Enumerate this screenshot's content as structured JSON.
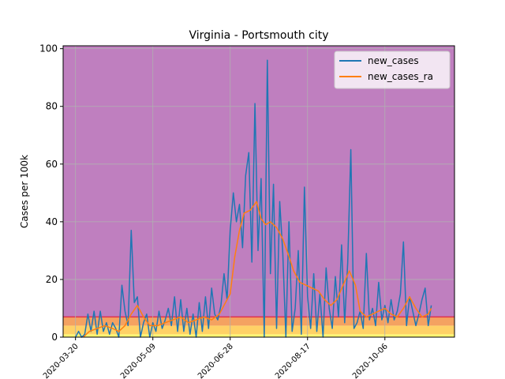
{
  "chart_data": {
    "type": "line",
    "title": "Virginia - Portsmouth city",
    "xlabel": "",
    "ylabel": "Cases per 100k",
    "x_start": "2020-03-12",
    "x_end": "2020-11-20",
    "xlim": [
      "2020-03-12",
      "2020-11-20"
    ],
    "ylim": [
      0,
      101
    ],
    "x_ticks": [
      "2020-03-20",
      "2020-05-09",
      "2020-06-28",
      "2020-08-17",
      "2020-10-06"
    ],
    "y_ticks": [
      0,
      20,
      40,
      60,
      80,
      100
    ],
    "grid": true,
    "legend_position": "top-right",
    "background_bands": [
      {
        "from": 0,
        "to": 1,
        "color": "#fff570"
      },
      {
        "from": 1,
        "to": 4,
        "color": "#ffd166"
      },
      {
        "from": 4,
        "to": 7,
        "color": "#f4a261"
      },
      {
        "from": 7,
        "to": 101,
        "color": "#bf7fbf"
      }
    ],
    "threshold_line": {
      "value": 7,
      "color": "#e0324a"
    },
    "series": [
      {
        "name": "new_cases",
        "color": "#1f77b4",
        "points": [
          [
            "2020-03-20",
            0
          ],
          [
            "2020-03-22",
            2
          ],
          [
            "2020-03-24",
            0
          ],
          [
            "2020-03-26",
            1
          ],
          [
            "2020-03-28",
            8
          ],
          [
            "2020-03-30",
            2
          ],
          [
            "2020-04-01",
            9
          ],
          [
            "2020-04-03",
            1
          ],
          [
            "2020-04-05",
            9
          ],
          [
            "2020-04-07",
            2
          ],
          [
            "2020-04-09",
            5
          ],
          [
            "2020-04-11",
            1
          ],
          [
            "2020-04-13",
            5
          ],
          [
            "2020-04-15",
            3
          ],
          [
            "2020-04-17",
            0
          ],
          [
            "2020-04-19",
            18
          ],
          [
            "2020-04-21",
            9
          ],
          [
            "2020-04-23",
            4
          ],
          [
            "2020-04-25",
            37
          ],
          [
            "2020-04-27",
            12
          ],
          [
            "2020-04-29",
            14
          ],
          [
            "2020-05-01",
            0
          ],
          [
            "2020-05-03",
            5
          ],
          [
            "2020-05-05",
            8
          ],
          [
            "2020-05-07",
            0
          ],
          [
            "2020-05-09",
            5
          ],
          [
            "2020-05-11",
            2
          ],
          [
            "2020-05-13",
            9
          ],
          [
            "2020-05-15",
            3
          ],
          [
            "2020-05-17",
            6
          ],
          [
            "2020-05-19",
            10
          ],
          [
            "2020-05-21",
            4
          ],
          [
            "2020-05-23",
            14
          ],
          [
            "2020-05-25",
            2
          ],
          [
            "2020-05-27",
            13
          ],
          [
            "2020-05-29",
            2
          ],
          [
            "2020-05-31",
            10
          ],
          [
            "2020-06-02",
            1
          ],
          [
            "2020-06-04",
            8
          ],
          [
            "2020-06-06",
            0
          ],
          [
            "2020-06-08",
            12
          ],
          [
            "2020-06-10",
            2
          ],
          [
            "2020-06-12",
            14
          ],
          [
            "2020-06-14",
            3
          ],
          [
            "2020-06-16",
            17
          ],
          [
            "2020-06-18",
            8
          ],
          [
            "2020-06-20",
            6
          ],
          [
            "2020-06-22",
            11
          ],
          [
            "2020-06-24",
            22
          ],
          [
            "2020-06-26",
            13
          ],
          [
            "2020-06-28",
            37
          ],
          [
            "2020-06-30",
            50
          ],
          [
            "2020-07-02",
            40
          ],
          [
            "2020-07-04",
            46
          ],
          [
            "2020-07-06",
            31
          ],
          [
            "2020-07-08",
            56
          ],
          [
            "2020-07-10",
            64
          ],
          [
            "2020-07-12",
            26
          ],
          [
            "2020-07-14",
            81
          ],
          [
            "2020-07-16",
            30
          ],
          [
            "2020-07-18",
            55
          ],
          [
            "2020-07-20",
            0
          ],
          [
            "2020-07-22",
            96
          ],
          [
            "2020-07-24",
            22
          ],
          [
            "2020-07-26",
            53
          ],
          [
            "2020-07-28",
            3
          ],
          [
            "2020-07-30",
            47
          ],
          [
            "2020-08-01",
            29
          ],
          [
            "2020-08-03",
            0
          ],
          [
            "2020-08-05",
            40
          ],
          [
            "2020-08-07",
            2
          ],
          [
            "2020-08-09",
            10
          ],
          [
            "2020-08-11",
            30
          ],
          [
            "2020-08-13",
            1
          ],
          [
            "2020-08-15",
            52
          ],
          [
            "2020-08-17",
            14
          ],
          [
            "2020-08-19",
            3
          ],
          [
            "2020-08-21",
            22
          ],
          [
            "2020-08-23",
            2
          ],
          [
            "2020-08-25",
            15
          ],
          [
            "2020-08-27",
            0
          ],
          [
            "2020-08-29",
            24
          ],
          [
            "2020-08-31",
            10
          ],
          [
            "2020-09-02",
            3
          ],
          [
            "2020-09-04",
            21
          ],
          [
            "2020-09-06",
            7
          ],
          [
            "2020-09-08",
            32
          ],
          [
            "2020-09-10",
            5
          ],
          [
            "2020-09-12",
            26
          ],
          [
            "2020-09-14",
            65
          ],
          [
            "2020-09-16",
            3
          ],
          [
            "2020-09-18",
            5
          ],
          [
            "2020-09-20",
            9
          ],
          [
            "2020-09-22",
            3
          ],
          [
            "2020-09-24",
            29
          ],
          [
            "2020-09-26",
            6
          ],
          [
            "2020-09-28",
            10
          ],
          [
            "2020-09-30",
            4
          ],
          [
            "2020-10-02",
            19
          ],
          [
            "2020-10-04",
            6
          ],
          [
            "2020-10-06",
            11
          ],
          [
            "2020-10-08",
            5
          ],
          [
            "2020-10-10",
            13
          ],
          [
            "2020-10-12",
            6
          ],
          [
            "2020-10-14",
            9
          ],
          [
            "2020-10-16",
            15
          ],
          [
            "2020-10-18",
            33
          ],
          [
            "2020-10-20",
            4
          ],
          [
            "2020-10-22",
            14
          ],
          [
            "2020-10-24",
            9
          ],
          [
            "2020-10-26",
            4
          ],
          [
            "2020-10-28",
            8
          ],
          [
            "2020-10-30",
            13
          ],
          [
            "2020-11-01",
            17
          ],
          [
            "2020-11-03",
            4
          ],
          [
            "2020-11-05",
            11
          ]
        ]
      },
      {
        "name": "new_cases_ra",
        "color": "#ff7f0e",
        "points": [
          [
            "2020-03-25",
            0
          ],
          [
            "2020-03-29",
            2
          ],
          [
            "2020-04-03",
            3
          ],
          [
            "2020-04-08",
            4
          ],
          [
            "2020-04-13",
            3
          ],
          [
            "2020-04-17",
            2
          ],
          [
            "2020-04-21",
            4
          ],
          [
            "2020-04-25",
            8
          ],
          [
            "2020-04-29",
            11
          ],
          [
            "2020-05-03",
            7
          ],
          [
            "2020-05-07",
            4
          ],
          [
            "2020-05-12",
            4
          ],
          [
            "2020-05-17",
            5
          ],
          [
            "2020-05-22",
            6
          ],
          [
            "2020-05-27",
            7
          ],
          [
            "2020-06-01",
            5
          ],
          [
            "2020-06-06",
            6
          ],
          [
            "2020-06-11",
            7
          ],
          [
            "2020-06-16",
            6
          ],
          [
            "2020-06-21",
            8
          ],
          [
            "2020-06-25",
            12
          ],
          [
            "2020-06-28",
            15
          ],
          [
            "2020-07-01",
            28
          ],
          [
            "2020-07-04",
            37
          ],
          [
            "2020-07-07",
            43
          ],
          [
            "2020-07-11",
            44
          ],
          [
            "2020-07-15",
            47
          ],
          [
            "2020-07-18",
            41
          ],
          [
            "2020-07-21",
            39
          ],
          [
            "2020-07-24",
            40
          ],
          [
            "2020-07-28",
            38
          ],
          [
            "2020-08-01",
            34
          ],
          [
            "2020-08-05",
            28
          ],
          [
            "2020-08-08",
            23
          ],
          [
            "2020-08-12",
            19
          ],
          [
            "2020-08-16",
            18
          ],
          [
            "2020-08-20",
            17
          ],
          [
            "2020-08-24",
            16
          ],
          [
            "2020-08-28",
            13
          ],
          [
            "2020-09-01",
            11
          ],
          [
            "2020-09-05",
            13
          ],
          [
            "2020-09-09",
            18
          ],
          [
            "2020-09-13",
            23
          ],
          [
            "2020-09-17",
            18
          ],
          [
            "2020-09-20",
            9
          ],
          [
            "2020-09-24",
            7
          ],
          [
            "2020-09-28",
            8
          ],
          [
            "2020-10-02",
            9
          ],
          [
            "2020-10-06",
            10
          ],
          [
            "2020-10-10",
            8
          ],
          [
            "2020-10-14",
            7
          ],
          [
            "2020-10-18",
            10
          ],
          [
            "2020-10-22",
            14
          ],
          [
            "2020-10-26",
            10
          ],
          [
            "2020-10-30",
            7
          ],
          [
            "2020-11-03",
            8
          ],
          [
            "2020-11-05",
            10
          ]
        ]
      }
    ]
  }
}
